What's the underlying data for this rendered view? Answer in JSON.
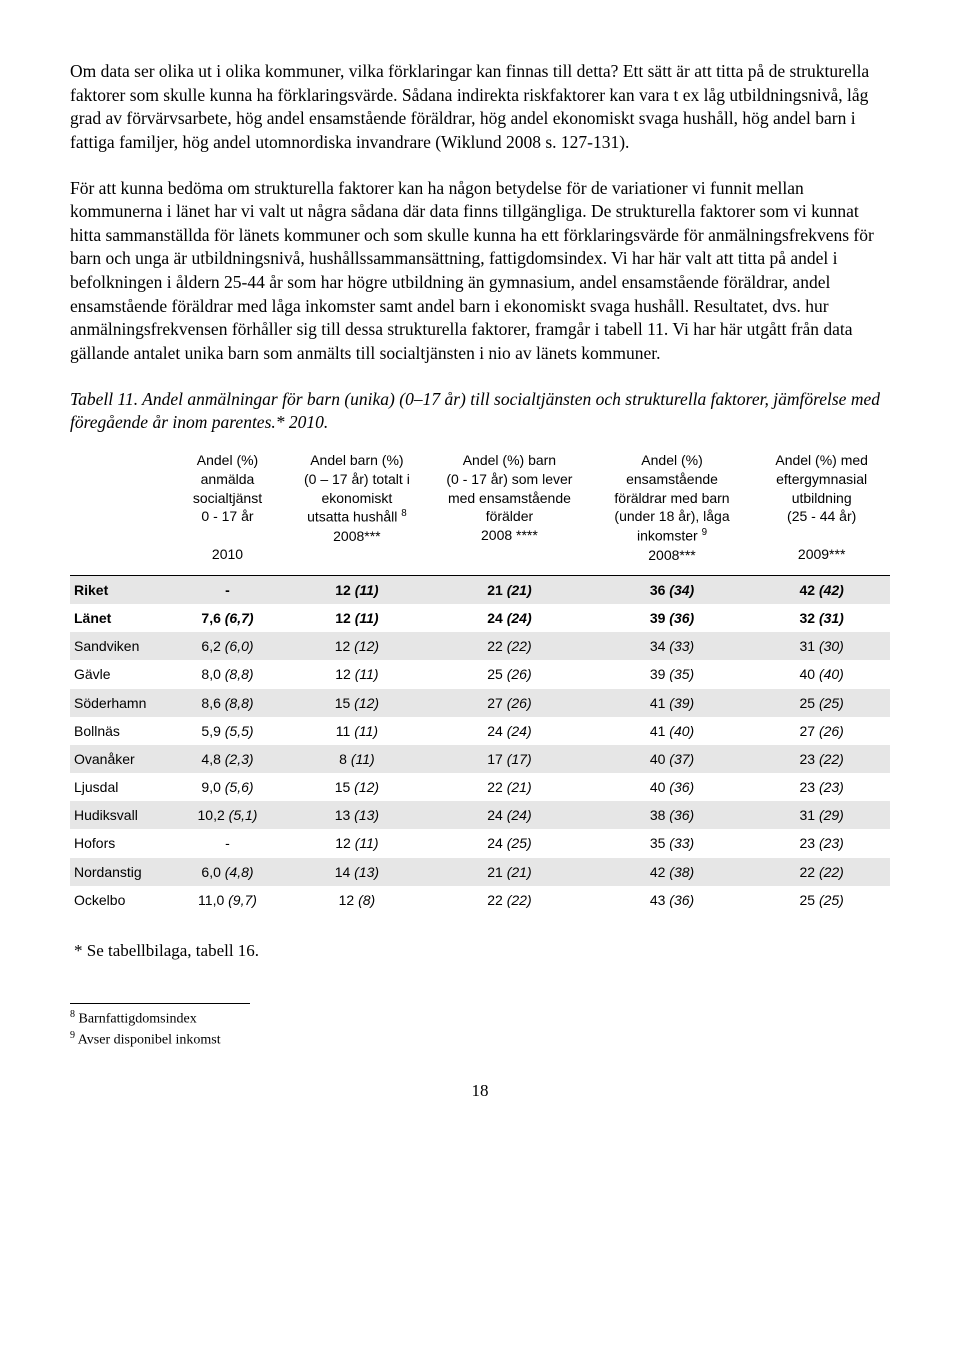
{
  "paragraphs": {
    "p1": "Om data ser olika ut i olika kommuner, vilka förklaringar kan finnas till detta? Ett sätt är att titta på de strukturella faktorer som skulle kunna ha förklaringsvärde. Sådana indirekta riskfaktorer kan vara t ex låg utbildningsnivå, låg grad av förvärvsarbete, hög andel ensamstående föräldrar, hög andel ekonomiskt svaga hushåll, hög andel barn i fattiga familjer, hög andel utomnordiska invandrare (Wiklund 2008 s. 127-131).",
    "p2": "För att kunna bedöma om strukturella faktorer kan ha någon betydelse för de variationer vi funnit mellan kommunerna i länet har vi valt ut några sådana där data finns tillgängliga. De strukturella faktorer som vi kunnat hitta sammanställda för länets kommuner och som skulle kunna ha ett förklaringsvärde för anmälningsfrekvens för barn och unga är utbildningsnivå, hushållssammansättning, fattigdomsindex. Vi har här valt att titta på andel i befolkningen i åldern 25-44 år som har högre utbildning än gymnasium, andel ensamstående föräldrar, andel ensamstående föräldrar med låga inkomster samt andel barn i ekonomiskt svaga hushåll. Resultatet, dvs. hur anmälningsfrekvensen förhåller sig till dessa strukturella faktorer, framgår i tabell 11. Vi har här utgått från data gällande antalet unika barn som anmälts till socialtjänsten i nio av länets kommuner."
  },
  "tableCaption": "Tabell 11. Andel anmälningar för barn (unika) (0–17 år) till socialtjänsten och strukturella faktorer, jämförelse med föregående år inom parentes.* 2010.",
  "columns": [
    "",
    "Andel (%) anmälda socialtjänst 0 - 17 år\n\n2010",
    "Andel barn (%) (0 – 17 år) totalt i ekonomiskt utsatta hushåll ⁸ 2008***",
    "Andel (%) barn (0 - 17 år) som lever med ensamstående förälder 2008 ****",
    "Andel (%) ensamstående föräldrar med barn (under 18 år), låga inkomster ⁹ 2008***",
    "Andel (%) med eftergymnasial utbildning (25 - 44 år)\n\n2009***"
  ],
  "rows": [
    {
      "label": "Riket",
      "bold": true,
      "zebra": true,
      "c1": "-",
      "c2": "12",
      "c2i": "(11)",
      "c3": "21",
      "c3i": "(21)",
      "c4": "36",
      "c4i": "(34)",
      "c5": "42",
      "c5i": "(42)"
    },
    {
      "label": "Länet",
      "bold": true,
      "zebra": false,
      "c1": "7,6",
      "c1i": "(6,7)",
      "c2": "12",
      "c2i": "(11)",
      "c3": "24",
      "c3i": "(24)",
      "c4": "39",
      "c4i": "(36)",
      "c5": "32",
      "c5i": "(31)"
    },
    {
      "label": "Sandviken",
      "zebra": true,
      "c1": "6,2",
      "c1i": "(6,0)",
      "c2": "12",
      "c2i": "(12)",
      "c3": "22",
      "c3i": "(22)",
      "c4": "34",
      "c4i": "(33)",
      "c5": "31",
      "c5i": "(30)"
    },
    {
      "label": "Gävle",
      "zebra": false,
      "c1": "8,0",
      "c1i": "(8,8)",
      "c2": "12",
      "c2i": "(11)",
      "c3": "25",
      "c3i": "(26)",
      "c4": "39",
      "c4i": "(35)",
      "c5": "40",
      "c5i": "(40)"
    },
    {
      "label": "Söderhamn",
      "zebra": true,
      "c1": "8,6",
      "c1i": "(8,8)",
      "c2": "15",
      "c2i": "(12)",
      "c3": "27",
      "c3i": "(26)",
      "c4": "41",
      "c4i": "(39)",
      "c5": "25",
      "c5i": "(25)"
    },
    {
      "label": "Bollnäs",
      "zebra": false,
      "c1": "5,9",
      "c1i": "(5,5)",
      "c2": "11",
      "c2i": "(11)",
      "c3": "24",
      "c3i": "(24)",
      "c4": "41",
      "c4i": "(40)",
      "c5": "27",
      "c5i": "(26)"
    },
    {
      "label": "Ovanåker",
      "zebra": true,
      "c1": "4,8",
      "c1i": "(2,3)",
      "c2": "8",
      "c2i": "(11)",
      "c3": "17",
      "c3i": "(17)",
      "c4": "40",
      "c4i": "(37)",
      "c5": "23",
      "c5i": "(22)"
    },
    {
      "label": "Ljusdal",
      "zebra": false,
      "c1": "9,0",
      "c1i": "(5,6)",
      "c2": "15",
      "c2i": "(12)",
      "c3": "22",
      "c3i": "(21)",
      "c4": "40",
      "c4i": "(36)",
      "c5": "23",
      "c5i": "(23)"
    },
    {
      "label": "Hudiksvall",
      "zebra": true,
      "c1": "10,2",
      "c1i": "(5,1)",
      "c2": "13",
      "c2i": "(13)",
      "c3": "24",
      "c3i": "(24)",
      "c4": "38",
      "c4i": "(36)",
      "c5": "31",
      "c5i": "(29)"
    },
    {
      "label": "Hofors",
      "zebra": false,
      "c1": "-",
      "c2": "12",
      "c2i": "(11)",
      "c3": "24",
      "c3i": "(25)",
      "c4": "35",
      "c4i": "(33)",
      "c5": "23",
      "c5i": "(23)"
    },
    {
      "label": "Nordanstig",
      "zebra": true,
      "c1": "6,0",
      "c1i": "(4,8)",
      "c2": "14",
      "c2i": "(13)",
      "c3": "21",
      "c3i": "(21)",
      "c4": "42",
      "c4i": "(38)",
      "c5": "22",
      "c5i": "(22)"
    },
    {
      "label": "Ockelbo",
      "zebra": false,
      "c1": "11,0",
      "c1i": "(9,7)",
      "c2": "12",
      "c2i": "(8)",
      "c3": "22",
      "c3i": "(22)",
      "c4": "43",
      "c4i": "(36)",
      "c5": "25",
      "c5i": "(25)"
    }
  ],
  "tableNote": "* Se tabellbilaga, tabell 16.",
  "footnotes": {
    "f8": "Barnfattigdomsindex",
    "f9": "Avser disponibel inkomst"
  },
  "pageNumber": "18"
}
